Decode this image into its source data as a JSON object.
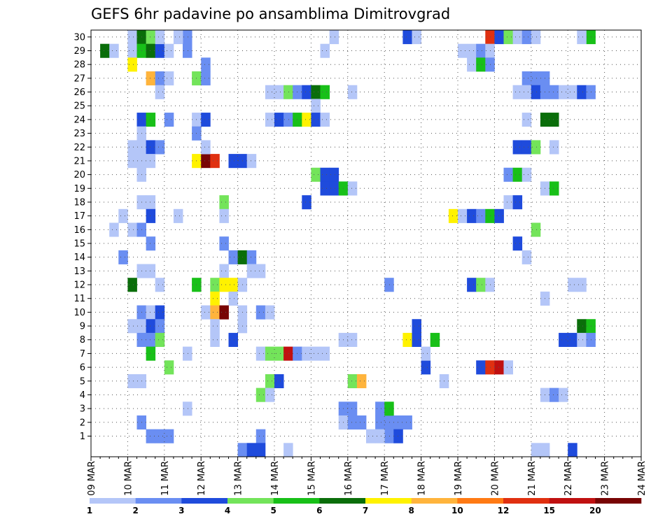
{
  "chart_data": {
    "type": "heatmap",
    "title": "GEFS 6hr padavine po ansamblima Dimitrovgrad",
    "x_tick_labels": [
      "09 MAR",
      "10 MAR",
      "11 MAR",
      "12 MAR",
      "13 MAR",
      "14 MAR",
      "15 MAR",
      "16 MAR",
      "17 MAR",
      "18 MAR",
      "19 MAR",
      "20 MAR",
      "21 MAR",
      "22 MAR",
      "23 MAR",
      "24 MAR"
    ],
    "y_tick_labels": [
      "1",
      "2",
      "3",
      "4",
      "5",
      "6",
      "7",
      "8",
      "9",
      "10",
      "11",
      "12",
      "13",
      "14",
      "15",
      "16",
      "17",
      "18",
      "19",
      "20",
      "21",
      "22",
      "23",
      "24",
      "25",
      "26",
      "27",
      "28",
      "29",
      "30"
    ],
    "x_step_hours": 6,
    "members": 31,
    "grid": "dotted",
    "colorbar": {
      "labels": [
        "1",
        "2",
        "3",
        "4",
        "5",
        "6",
        "7",
        "8",
        "10",
        "12",
        "15",
        "20"
      ],
      "colors": [
        "#b4c6f8",
        "#6a8ef2",
        "#1f4bdc",
        "#73e45a",
        "#18c018",
        "#0a6e0a",
        "#fff200",
        "#ffb43c",
        "#ff7a14",
        "#e03010",
        "#c01010",
        "#780404"
      ]
    },
    "cells": [
      [
        4,
        30,
        "#b4c6f8"
      ],
      [
        4,
        29,
        "#b4c6f8"
      ],
      [
        5,
        30,
        "#0a6e0a"
      ],
      [
        5,
        29,
        "#18c018"
      ],
      [
        6,
        30,
        "#73e45a"
      ],
      [
        6,
        29,
        "#0a6e0a"
      ],
      [
        7,
        29,
        "#1f4bdc"
      ],
      [
        8,
        29,
        "#b4c6f8"
      ],
      [
        7,
        30,
        "#b4c6f8"
      ],
      [
        1,
        29,
        "#0a6e0a"
      ],
      [
        2,
        29,
        "#b4c6f8"
      ],
      [
        4,
        28,
        "#fff200"
      ],
      [
        10,
        30,
        "#6a8ef2"
      ],
      [
        9,
        30,
        "#b4c6f8"
      ],
      [
        10,
        29,
        "#6a8ef2"
      ],
      [
        12,
        28,
        "#6a8ef2"
      ],
      [
        6,
        27,
        "#ffb43c"
      ],
      [
        7,
        27,
        "#6a8ef2"
      ],
      [
        8,
        27,
        "#b4c6f8"
      ],
      [
        11,
        27,
        "#73e45a"
      ],
      [
        12,
        27,
        "#6a8ef2"
      ],
      [
        7,
        26,
        "#b4c6f8"
      ],
      [
        5,
        24,
        "#1f4bdc"
      ],
      [
        6,
        24,
        "#18c018"
      ],
      [
        5,
        23,
        "#b4c6f8"
      ],
      [
        8,
        24,
        "#6a8ef2"
      ],
      [
        11,
        24,
        "#b4c6f8"
      ],
      [
        12,
        24,
        "#1f4bdc"
      ],
      [
        11,
        23,
        "#6a8ef2"
      ],
      [
        4,
        22,
        "#b4c6f8"
      ],
      [
        5,
        22,
        "#b4c6f8"
      ],
      [
        6,
        22,
        "#1f4bdc"
      ],
      [
        7,
        22,
        "#6a8ef2"
      ],
      [
        4,
        21,
        "#b4c6f8"
      ],
      [
        5,
        21,
        "#b4c6f8"
      ],
      [
        6,
        21,
        "#b4c6f8"
      ],
      [
        11,
        21,
        "#fff200"
      ],
      [
        12,
        21,
        "#780404"
      ],
      [
        13,
        21,
        "#e03010"
      ],
      [
        12,
        22,
        "#b4c6f8"
      ],
      [
        15,
        21,
        "#1f4bdc"
      ],
      [
        16,
        21,
        "#1f4bdc"
      ],
      [
        5,
        20,
        "#b4c6f8"
      ],
      [
        17,
        21,
        "#b4c6f8"
      ],
      [
        14,
        18,
        "#73e45a"
      ],
      [
        5,
        18,
        "#b4c6f8"
      ],
      [
        6,
        18,
        "#b4c6f8"
      ],
      [
        3,
        17,
        "#b4c6f8"
      ],
      [
        6,
        17,
        "#1f4bdc"
      ],
      [
        9,
        17,
        "#b4c6f8"
      ],
      [
        14,
        17,
        "#b4c6f8"
      ],
      [
        2,
        16,
        "#b4c6f8"
      ],
      [
        4,
        16,
        "#b4c6f8"
      ],
      [
        5,
        16,
        "#6a8ef2"
      ],
      [
        14,
        15,
        "#6a8ef2"
      ],
      [
        6,
        15,
        "#6a8ef2"
      ],
      [
        15,
        14,
        "#6a8ef2"
      ],
      [
        16,
        14,
        "#0a6e0a"
      ],
      [
        17,
        14,
        "#6a8ef2"
      ],
      [
        3,
        14,
        "#6a8ef2"
      ],
      [
        5,
        13,
        "#b4c6f8"
      ],
      [
        6,
        13,
        "#b4c6f8"
      ],
      [
        14,
        13,
        "#b4c6f8"
      ],
      [
        17,
        13,
        "#b4c6f8"
      ],
      [
        18,
        13,
        "#b4c6f8"
      ],
      [
        4,
        12,
        "#0a6e0a"
      ],
      [
        7,
        12,
        "#b4c6f8"
      ],
      [
        11,
        12,
        "#18c018"
      ],
      [
        13,
        12,
        "#73e45a"
      ],
      [
        14,
        12,
        "#fff200"
      ],
      [
        15,
        12,
        "#fff200"
      ],
      [
        16,
        12,
        "#b4c6f8"
      ],
      [
        15,
        11,
        "#b4c6f8"
      ],
      [
        13,
        11,
        "#fff200"
      ],
      [
        5,
        10,
        "#6a8ef2"
      ],
      [
        6,
        10,
        "#b4c6f8"
      ],
      [
        7,
        10,
        "#1f4bdc"
      ],
      [
        5,
        9,
        "#b4c6f8"
      ],
      [
        6,
        9,
        "#1f4bdc"
      ],
      [
        7,
        9,
        "#6a8ef2"
      ],
      [
        4,
        9,
        "#b4c6f8"
      ],
      [
        12,
        10,
        "#b4c6f8"
      ],
      [
        13,
        10,
        "#ffb43c"
      ],
      [
        14,
        10,
        "#780404"
      ],
      [
        16,
        10,
        "#b4c6f8"
      ],
      [
        18,
        10,
        "#6a8ef2"
      ],
      [
        19,
        10,
        "#b4c6f8"
      ],
      [
        13,
        9,
        "#b4c6f8"
      ],
      [
        16,
        9,
        "#b4c6f8"
      ],
      [
        5,
        8,
        "#6a8ef2"
      ],
      [
        6,
        8,
        "#6a8ef2"
      ],
      [
        7,
        8,
        "#73e45a"
      ],
      [
        13,
        8,
        "#b4c6f8"
      ],
      [
        15,
        8,
        "#1f4bdc"
      ],
      [
        6,
        7,
        "#18c018"
      ],
      [
        8,
        6,
        "#73e45a"
      ],
      [
        10,
        7,
        "#b4c6f8"
      ],
      [
        18,
        7,
        "#b4c6f8"
      ],
      [
        19,
        7,
        "#73e45a"
      ],
      [
        20,
        7,
        "#73e45a"
      ],
      [
        21,
        7,
        "#c01010"
      ],
      [
        22,
        7,
        "#6a8ef2"
      ],
      [
        23,
        7,
        "#b4c6f8"
      ],
      [
        4,
        5,
        "#b4c6f8"
      ],
      [
        5,
        5,
        "#b4c6f8"
      ],
      [
        19,
        5,
        "#73e45a"
      ],
      [
        20,
        5,
        "#1f4bdc"
      ],
      [
        18,
        4,
        "#73e45a"
      ],
      [
        19,
        4,
        "#b4c6f8"
      ],
      [
        10,
        3,
        "#b4c6f8"
      ],
      [
        5,
        2,
        "#6a8ef2"
      ],
      [
        6,
        1,
        "#6a8ef2"
      ],
      [
        7,
        1,
        "#6a8ef2"
      ],
      [
        8,
        1,
        "#6a8ef2"
      ],
      [
        18,
        1,
        "#6a8ef2"
      ],
      [
        16,
        0,
        "#6a8ef2"
      ],
      [
        17,
        0,
        "#1f4bdc"
      ],
      [
        18,
        0,
        "#1f4bdc"
      ],
      [
        21,
        0,
        "#b4c6f8"
      ],
      [
        26,
        30,
        "#b4c6f8"
      ],
      [
        25,
        29,
        "#b4c6f8"
      ],
      [
        19,
        26,
        "#b4c6f8"
      ],
      [
        20,
        26,
        "#b4c6f8"
      ],
      [
        21,
        26,
        "#73e45a"
      ],
      [
        22,
        26,
        "#6a8ef2"
      ],
      [
        23,
        26,
        "#1f4bdc"
      ],
      [
        24,
        26,
        "#0a6e0a"
      ],
      [
        25,
        26,
        "#18c018"
      ],
      [
        24,
        25,
        "#b4c6f8"
      ],
      [
        19,
        24,
        "#b4c6f8"
      ],
      [
        20,
        24,
        "#1f4bdc"
      ],
      [
        21,
        24,
        "#6a8ef2"
      ],
      [
        22,
        24,
        "#18c018"
      ],
      [
        23,
        24,
        "#fff200"
      ],
      [
        24,
        24,
        "#1f4bdc"
      ],
      [
        25,
        24,
        "#b4c6f8"
      ],
      [
        24,
        20,
        "#73e45a"
      ],
      [
        25,
        20,
        "#1f4bdc"
      ],
      [
        26,
        20,
        "#1f4bdc"
      ],
      [
        25,
        19,
        "#1f4bdc"
      ],
      [
        26,
        19,
        "#1f4bdc"
      ],
      [
        27,
        19,
        "#18c018"
      ],
      [
        28,
        19,
        "#b4c6f8"
      ],
      [
        23,
        18,
        "#1f4bdc"
      ],
      [
        28,
        26,
        "#b4c6f8"
      ],
      [
        27,
        8,
        "#b4c6f8"
      ],
      [
        28,
        8,
        "#b4c6f8"
      ],
      [
        24,
        7,
        "#b4c6f8"
      ],
      [
        25,
        7,
        "#b4c6f8"
      ],
      [
        28,
        5,
        "#73e45a"
      ],
      [
        29,
        5,
        "#ffb43c"
      ],
      [
        27,
        3,
        "#6a8ef2"
      ],
      [
        28,
        3,
        "#6a8ef2"
      ],
      [
        27,
        2,
        "#b4c6f8"
      ],
      [
        28,
        2,
        "#6a8ef2"
      ],
      [
        29,
        2,
        "#6a8ef2"
      ],
      [
        31,
        2,
        "#6a8ef2"
      ],
      [
        32,
        2,
        "#6a8ef2"
      ],
      [
        32,
        12,
        "#6a8ef2"
      ],
      [
        34,
        8,
        "#fff200"
      ],
      [
        35,
        8,
        "#1f4bdc"
      ],
      [
        37,
        8,
        "#18c018"
      ],
      [
        38,
        5,
        "#b4c6f8"
      ],
      [
        34,
        30,
        "#1f4bdc"
      ],
      [
        35,
        30,
        "#b4c6f8"
      ],
      [
        31,
        3,
        "#6a8ef2"
      ],
      [
        32,
        3,
        "#18c018"
      ],
      [
        33,
        2,
        "#6a8ef2"
      ],
      [
        34,
        2,
        "#6a8ef2"
      ],
      [
        32,
        1,
        "#6a8ef2"
      ],
      [
        33,
        1,
        "#1f4bdc"
      ],
      [
        30,
        1,
        "#b4c6f8"
      ],
      [
        31,
        1,
        "#b4c6f8"
      ],
      [
        39,
        17,
        "#fff200"
      ],
      [
        40,
        17,
        "#b4c6f8"
      ],
      [
        41,
        17,
        "#1f4bdc"
      ],
      [
        42,
        17,
        "#6a8ef2"
      ],
      [
        43,
        17,
        "#18c018"
      ],
      [
        44,
        17,
        "#1f4bdc"
      ],
      [
        41,
        12,
        "#1f4bdc"
      ],
      [
        42,
        12,
        "#73e45a"
      ],
      [
        43,
        12,
        "#b4c6f8"
      ],
      [
        42,
        6,
        "#1f4bdc"
      ],
      [
        43,
        6,
        "#e03010"
      ],
      [
        44,
        6,
        "#c01010"
      ],
      [
        45,
        6,
        "#b4c6f8"
      ],
      [
        40,
        29,
        "#b4c6f8"
      ],
      [
        41,
        29,
        "#b4c6f8"
      ],
      [
        42,
        29,
        "#6a8ef2"
      ],
      [
        41,
        28,
        "#b4c6f8"
      ],
      [
        42,
        28,
        "#18c018"
      ],
      [
        43,
        30,
        "#e03010"
      ],
      [
        44,
        30,
        "#1f4bdc"
      ],
      [
        45,
        30,
        "#73e45a"
      ],
      [
        46,
        30,
        "#b4c6f8"
      ],
      [
        47,
        30,
        "#6a8ef2"
      ],
      [
        48,
        30,
        "#b4c6f8"
      ],
      [
        43,
        29,
        "#b4c6f8"
      ],
      [
        43,
        28,
        "#6a8ef2"
      ],
      [
        47,
        27,
        "#6a8ef2"
      ],
      [
        48,
        27,
        "#6a8ef2"
      ],
      [
        49,
        27,
        "#6a8ef2"
      ],
      [
        47,
        26,
        "#b4c6f8"
      ],
      [
        48,
        26,
        "#1f4bdc"
      ],
      [
        49,
        26,
        "#6a8ef2"
      ],
      [
        50,
        26,
        "#6a8ef2"
      ],
      [
        51,
        26,
        "#b4c6f8"
      ],
      [
        52,
        26,
        "#b4c6f8"
      ],
      [
        53,
        26,
        "#1f4bdc"
      ],
      [
        54,
        26,
        "#6a8ef2"
      ],
      [
        46,
        26,
        "#b4c6f8"
      ],
      [
        47,
        24,
        "#b4c6f8"
      ],
      [
        49,
        24,
        "#0a6e0a"
      ],
      [
        50,
        24,
        "#0a6e0a"
      ],
      [
        46,
        22,
        "#1f4bdc"
      ],
      [
        47,
        22,
        "#1f4bdc"
      ],
      [
        48,
        22,
        "#73e45a"
      ],
      [
        50,
        22,
        "#b4c6f8"
      ],
      [
        45,
        20,
        "#6a8ef2"
      ],
      [
        46,
        20,
        "#18c018"
      ],
      [
        47,
        20,
        "#b4c6f8"
      ],
      [
        49,
        19,
        "#b4c6f8"
      ],
      [
        50,
        19,
        "#18c018"
      ],
      [
        45,
        18,
        "#b4c6f8"
      ],
      [
        46,
        18,
        "#1f4bdc"
      ],
      [
        48,
        16,
        "#73e45a"
      ],
      [
        46,
        15,
        "#1f4bdc"
      ],
      [
        47,
        14,
        "#b4c6f8"
      ],
      [
        52,
        12,
        "#b4c6f8"
      ],
      [
        53,
        12,
        "#b4c6f8"
      ],
      [
        49,
        11,
        "#b4c6f8"
      ],
      [
        53,
        9,
        "#0a6e0a"
      ],
      [
        54,
        9,
        "#18c018"
      ],
      [
        52,
        8,
        "#1f4bdc"
      ],
      [
        53,
        8,
        "#b4c6f8"
      ],
      [
        51,
        8,
        "#1f4bdc"
      ],
      [
        54,
        8,
        "#6a8ef2"
      ],
      [
        49,
        4,
        "#b4c6f8"
      ],
      [
        50,
        4,
        "#6a8ef2"
      ],
      [
        51,
        4,
        "#b4c6f8"
      ],
      [
        48,
        0,
        "#b4c6f8"
      ],
      [
        49,
        0,
        "#b4c6f8"
      ],
      [
        52,
        0,
        "#1f4bdc"
      ],
      [
        54,
        30,
        "#18c018"
      ],
      [
        53,
        30,
        "#b4c6f8"
      ],
      [
        36,
        6,
        "#1f4bdc"
      ],
      [
        36,
        7,
        "#b4c6f8"
      ],
      [
        35,
        9,
        "#1f4bdc"
      ]
    ]
  }
}
